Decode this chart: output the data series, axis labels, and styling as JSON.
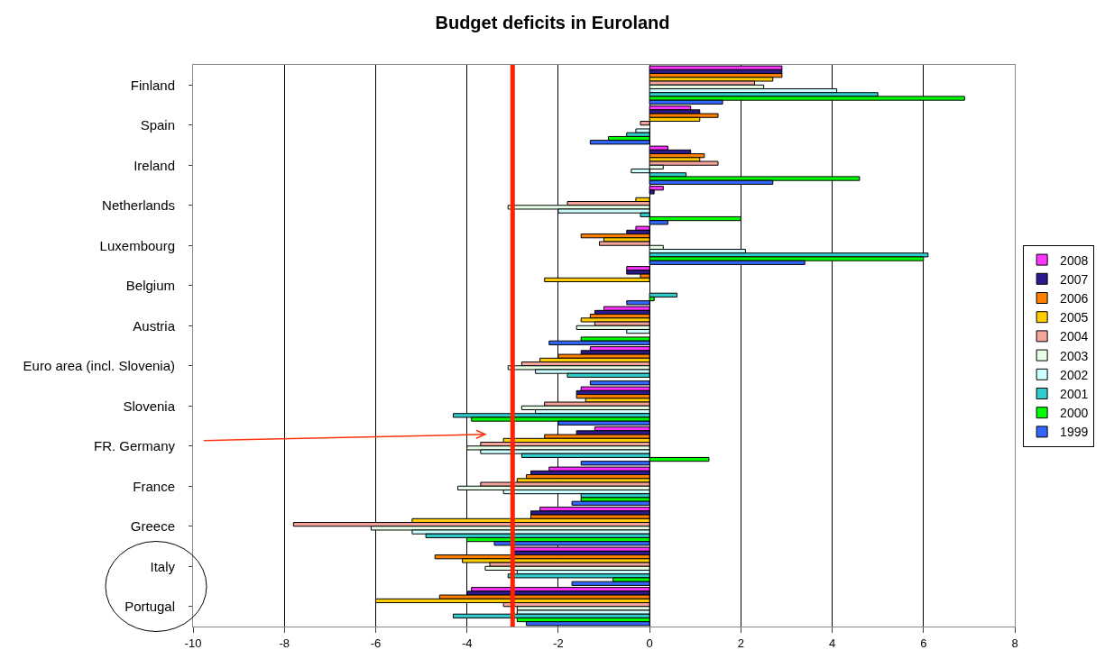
{
  "chart_data": {
    "type": "bar",
    "orientation": "horizontal",
    "title": "Budget deficits in Euroland",
    "categories": [
      "Finland",
      "Spain",
      "Ireland",
      "Netherlands",
      "Luxembourg",
      "Belgium",
      "Austria",
      "Euro area (incl. Slovenia)",
      "Slovenia",
      "FR. Germany",
      "France",
      "Greece",
      "Italy",
      "Portugal"
    ],
    "series": [
      {
        "name": "2008",
        "color": "#ff33ff",
        "values": [
          2.9,
          0.9,
          0.4,
          0.3,
          -0.3,
          -0.5,
          -1.0,
          -1.3,
          -1.5,
          -1.2,
          -2.2,
          -2.4,
          -3.0,
          -3.9
        ]
      },
      {
        "name": "2007",
        "color": "#2a1a8c",
        "values": [
          2.9,
          1.1,
          0.9,
          0.1,
          -0.5,
          -0.5,
          -1.2,
          -1.5,
          -1.6,
          -1.6,
          -2.6,
          -2.6,
          -3.0,
          -4.0
        ]
      },
      {
        "name": "2006",
        "color": "#ff8000",
        "values": [
          2.9,
          1.5,
          1.2,
          0,
          -1.5,
          -0.2,
          -1.3,
          -2.0,
          -1.6,
          -2.3,
          -2.7,
          -2.6,
          -4.7,
          -4.6
        ]
      },
      {
        "name": "2005",
        "color": "#ffcc00",
        "values": [
          2.7,
          1.1,
          1.1,
          -0.3,
          -1.0,
          -2.3,
          -1.5,
          -2.4,
          -1.4,
          -3.2,
          -2.9,
          -5.2,
          -4.1,
          -6.0
        ]
      },
      {
        "name": "2004",
        "color": "#f4a49a",
        "values": [
          2.3,
          -0.2,
          1.5,
          -1.8,
          -1.1,
          0,
          -1.2,
          -2.8,
          -2.3,
          -3.7,
          -3.7,
          -7.8,
          -3.5,
          -3.2
        ]
      },
      {
        "name": "2003",
        "color": "#e6ffe6",
        "values": [
          2.5,
          0,
          0.3,
          -3.1,
          0.3,
          0,
          -1.6,
          -3.1,
          -2.8,
          -4.0,
          -4.2,
          -6.1,
          -3.6,
          -2.9
        ]
      },
      {
        "name": "2002",
        "color": "#ccffff",
        "values": [
          4.1,
          -0.3,
          -0.4,
          -2.0,
          2.1,
          0,
          -0.5,
          -2.5,
          -2.5,
          -3.7,
          -3.2,
          -5.2,
          -2.9,
          -2.9
        ]
      },
      {
        "name": "2001",
        "color": "#33cccc",
        "values": [
          5.0,
          -0.5,
          0.8,
          -0.2,
          6.1,
          0.6,
          0,
          -1.8,
          -4.3,
          -2.8,
          -1.5,
          -4.9,
          -3.1,
          -4.3
        ]
      },
      {
        "name": "2000",
        "color": "#00ff00",
        "values": [
          6.9,
          -0.9,
          4.6,
          2.0,
          6.0,
          0.1,
          -1.5,
          0,
          -3.9,
          1.3,
          -1.5,
          -4.0,
          -0.8,
          -2.9
        ]
      },
      {
        "name": "1999",
        "color": "#3366ff",
        "values": [
          1.6,
          -1.3,
          2.7,
          0.4,
          3.4,
          -0.5,
          -2.2,
          -1.3,
          -2.0,
          -1.5,
          -1.7,
          -3.4,
          -1.7,
          -2.7
        ]
      }
    ],
    "xlim": [
      -10,
      8
    ],
    "xticks": [
      -10,
      -8,
      -6,
      -4,
      -2,
      0,
      2,
      4,
      6,
      8
    ],
    "grid": "x",
    "legend": "right",
    "ref_lines": [
      {
        "axis": "x",
        "value": -3,
        "color": "#ff2200"
      }
    ]
  }
}
